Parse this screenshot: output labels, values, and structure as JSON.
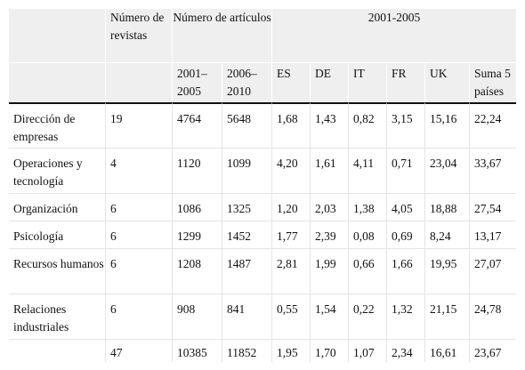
{
  "header": {
    "col_num_revistas": "Número de revistas",
    "col_num_articulos": "Número de artículos",
    "col_periodo": "2001-2005",
    "sub_2001_2005": "2001–2005",
    "sub_2006_2010": "2006–2010",
    "sub_es": "ES",
    "sub_de": "DE",
    "sub_it": "IT",
    "sub_fr": "FR",
    "sub_uk": "UK",
    "sub_suma": "Suma 5 países"
  },
  "rows": [
    {
      "area": "Dirección de empresas",
      "revistas": "19",
      "art_2001": "4764",
      "art_2006": "5648",
      "es": "1,68",
      "de": "1,43",
      "it": "0,82",
      "fr": "3,15",
      "uk": "15,16",
      "suma": "22,24"
    },
    {
      "area": "Operaciones y tecnología",
      "revistas": "4",
      "art_2001": "1120",
      "art_2006": "1099",
      "es": "4,20",
      "de": "1,61",
      "it": "4,11",
      "fr": "0,71",
      "uk": "23,04",
      "suma": "33,67"
    },
    {
      "area": "Organización",
      "revistas": "6",
      "art_2001": "1086",
      "art_2006": "1325",
      "es": "1,20",
      "de": "2,03",
      "it": "1,38",
      "fr": "4,05",
      "uk": "18,88",
      "suma": "27,54"
    },
    {
      "area": "Psicología",
      "revistas": "6",
      "art_2001": "1299",
      "art_2006": "1452",
      "es": "1,77",
      "de": "2,39",
      "it": "0,08",
      "fr": "0,69",
      "uk": "8,24",
      "suma": "13,17"
    },
    {
      "area": "Recursos humanos",
      "revistas": "6",
      "art_2001": "1208",
      "art_2006": "1487",
      "es": "2,81",
      "de": "1,99",
      "it": "0,66",
      "fr": "1,66",
      "uk": "19,95",
      "suma": "27,07"
    },
    {
      "area": "Relaciones industriales",
      "revistas": "6",
      "art_2001": "908",
      "art_2006": "841",
      "es": "0,55",
      "de": "1,54",
      "it": "0,22",
      "fr": "1,32",
      "uk": "21,15",
      "suma": "24,78"
    },
    {
      "area": "",
      "revistas": "47",
      "art_2001": "10385",
      "art_2006": "11852",
      "es": "1,95",
      "de": "1,70",
      "it": "1,07",
      "fr": "2,34",
      "uk": "16,61",
      "suma": "23,67"
    }
  ]
}
